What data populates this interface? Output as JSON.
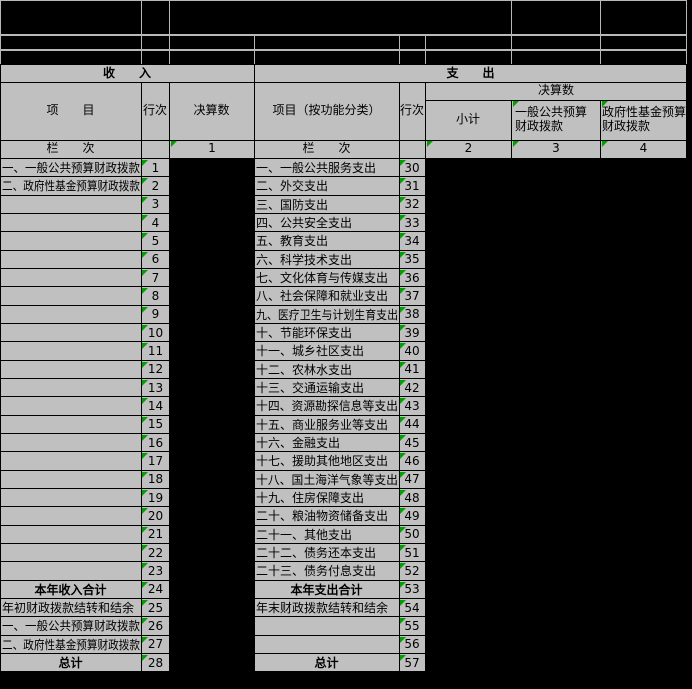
{
  "sheet": {
    "kind": "budget-final-accounts-table",
    "colors": {
      "cell_bg": "#c0c0c0",
      "sheet_bg": "#000000",
      "grid_in_black": "#b8b8b8",
      "grid_in_gray": "#000000",
      "indicator_green": "#00a000",
      "text": "#000000"
    }
  },
  "income": {
    "title": "收　　入",
    "headers": {
      "item": "项　　目",
      "line_no": "行次",
      "amount": "决算数",
      "column_row_label": "栏　　次",
      "column_number_1": "1"
    },
    "rows": [
      {
        "label": "一、一般公共预算财政拨款",
        "line": "1",
        "style": "normal"
      },
      {
        "label": "二、政府性基金预算财政拨款",
        "line": "2",
        "style": "normal"
      },
      {
        "label": "",
        "line": "3",
        "style": "normal"
      },
      {
        "label": "",
        "line": "4",
        "style": "normal"
      },
      {
        "label": "",
        "line": "5",
        "style": "normal"
      },
      {
        "label": "",
        "line": "6",
        "style": "normal"
      },
      {
        "label": "",
        "line": "7",
        "style": "normal"
      },
      {
        "label": "",
        "line": "8",
        "style": "normal"
      },
      {
        "label": "",
        "line": "9",
        "style": "normal"
      },
      {
        "label": "",
        "line": "10",
        "style": "normal"
      },
      {
        "label": "",
        "line": "11",
        "style": "normal"
      },
      {
        "label": "",
        "line": "12",
        "style": "normal"
      },
      {
        "label": "",
        "line": "13",
        "style": "normal"
      },
      {
        "label": "",
        "line": "14",
        "style": "normal"
      },
      {
        "label": "",
        "line": "15",
        "style": "normal"
      },
      {
        "label": "",
        "line": "16",
        "style": "normal"
      },
      {
        "label": "",
        "line": "17",
        "style": "normal"
      },
      {
        "label": "",
        "line": "18",
        "style": "normal"
      },
      {
        "label": "",
        "line": "19",
        "style": "normal"
      },
      {
        "label": "",
        "line": "20",
        "style": "normal"
      },
      {
        "label": "",
        "line": "21",
        "style": "normal"
      },
      {
        "label": "",
        "line": "22",
        "style": "normal"
      },
      {
        "label": "",
        "line": "23",
        "style": "normal"
      },
      {
        "label": "本年收入合计",
        "line": "24",
        "style": "total"
      },
      {
        "label": "年初财政拨款结转和结余",
        "line": "25",
        "style": "normal"
      },
      {
        "label": "一、一般公共预算财政拨款",
        "line": "26",
        "style": "normal"
      },
      {
        "label": "二、政府性基金预算财政拨款",
        "line": "27",
        "style": "normal"
      },
      {
        "label": "总计",
        "line": "28",
        "style": "total"
      }
    ]
  },
  "expenditure": {
    "title": "支　　出",
    "headers": {
      "item": "项目（按功能分类）",
      "line_no": "行次",
      "amount_group": "决算数",
      "subtotal": "小计",
      "general_public_budget": "一般公共预算财政拨款",
      "government_fund_budget": "政府性基金预算财政拨款",
      "column_row_label": "栏　　次",
      "column_number_2": "2",
      "column_number_3": "3",
      "column_number_4": "4"
    },
    "rows": [
      {
        "label": "一、一般公共服务支出",
        "line": "30",
        "style": "normal"
      },
      {
        "label": "二、外交支出",
        "line": "31",
        "style": "normal"
      },
      {
        "label": "三、国防支出",
        "line": "32",
        "style": "normal"
      },
      {
        "label": "四、公共安全支出",
        "line": "33",
        "style": "normal"
      },
      {
        "label": "五、教育支出",
        "line": "34",
        "style": "normal"
      },
      {
        "label": "六、科学技术支出",
        "line": "35",
        "style": "normal"
      },
      {
        "label": "七、文化体育与传媒支出",
        "line": "36",
        "style": "normal"
      },
      {
        "label": "八、社会保障和就业支出",
        "line": "37",
        "style": "normal"
      },
      {
        "label": "九、医疗卫生与计划生育支出",
        "line": "38",
        "style": "normal"
      },
      {
        "label": "十、节能环保支出",
        "line": "39",
        "style": "normal"
      },
      {
        "label": "十一、城乡社区支出",
        "line": "40",
        "style": "normal"
      },
      {
        "label": "十二、农林水支出",
        "line": "41",
        "style": "normal"
      },
      {
        "label": "十三、交通运输支出",
        "line": "42",
        "style": "normal"
      },
      {
        "label": "十四、资源勘探信息等支出",
        "line": "43",
        "style": "normal"
      },
      {
        "label": "十五、商业服务业等支出",
        "line": "44",
        "style": "normal"
      },
      {
        "label": "十六、金融支出",
        "line": "45",
        "style": "normal"
      },
      {
        "label": "十七、援助其他地区支出",
        "line": "46",
        "style": "normal"
      },
      {
        "label": "十八、国土海洋气象等支出",
        "line": "47",
        "style": "normal"
      },
      {
        "label": "十九、住房保障支出",
        "line": "48",
        "style": "normal"
      },
      {
        "label": "二十、粮油物资储备支出",
        "line": "49",
        "style": "normal"
      },
      {
        "label": "二十一、其他支出",
        "line": "50",
        "style": "normal"
      },
      {
        "label": "二十二、债务还本支出",
        "line": "51",
        "style": "normal"
      },
      {
        "label": "二十三、债务付息支出",
        "line": "52",
        "style": "normal"
      },
      {
        "label": "本年支出合计",
        "line": "53",
        "style": "total"
      },
      {
        "label": "年末财政拨款结转和结余",
        "line": "54",
        "style": "normal"
      },
      {
        "label": "",
        "line": "55",
        "style": "normal"
      },
      {
        "label": "",
        "line": "56",
        "style": "normal"
      },
      {
        "label": "总计",
        "line": "57",
        "style": "total"
      }
    ]
  }
}
